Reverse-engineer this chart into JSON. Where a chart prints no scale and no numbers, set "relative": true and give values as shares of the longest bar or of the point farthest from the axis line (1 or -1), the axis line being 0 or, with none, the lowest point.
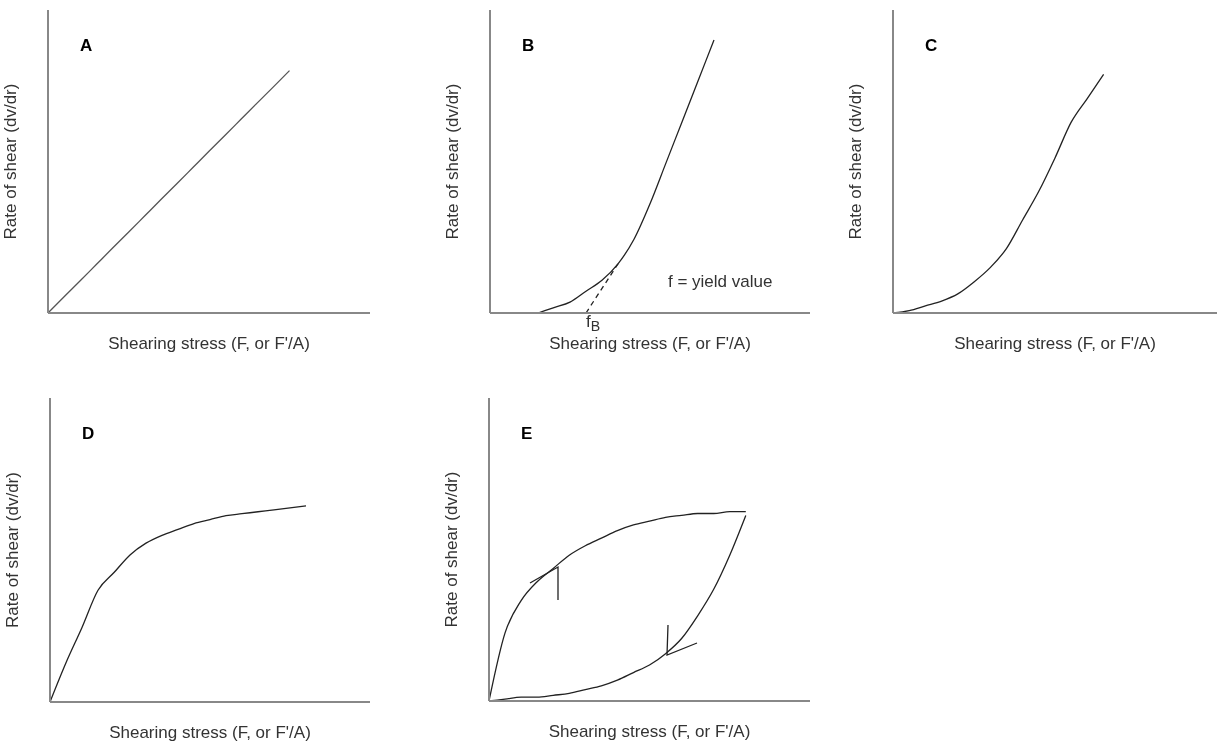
{
  "chart_data": [
    {
      "type": "line",
      "title": "A",
      "xlabel": "Shearing stress (F, or F'/A)",
      "ylabel": "Rate of shear (dv/dr)",
      "relative": true,
      "categories": [
        null,
        null,
        null,
        null,
        null,
        null,
        null,
        null,
        null,
        null,
        null,
        null,
        null,
        null,
        null,
        null,
        null,
        null,
        null,
        null,
        null
      ],
      "series": [
        {
          "color": "#555555",
          "values": [
            0,
            0.067,
            0.133,
            0.2,
            0.267,
            0.333,
            0.4,
            0.467,
            0.533,
            0.6,
            0.667,
            0.733,
            0.8,
            0.867,
            0.933,
            1,
            null,
            null,
            null,
            null,
            null
          ]
        }
      ]
    },
    {
      "type": "line",
      "title": "B",
      "xlabel": "Shearing stress (F, or F'/A)",
      "ylabel": "Rate of shear (dv/dr)",
      "relative": true,
      "annotations": [
        "f = yield value",
        "f$_{B}$"
      ],
      "categories": [
        null,
        null,
        null,
        null,
        null,
        null,
        null,
        null,
        null,
        null,
        null,
        null,
        null,
        null,
        null,
        null,
        null,
        null,
        null,
        null,
        null
      ],
      "series": [
        {
          "color": "#222222",
          "values": [
            null,
            null,
            null,
            0,
            0.02,
            0.04,
            0.08,
            0.12,
            0.18,
            0.27,
            0.4,
            0.55,
            0.7,
            0.85,
            1,
            null,
            null,
            null,
            null,
            null,
            null
          ]
        },
        {
          "color": "#222222",
          "line_style": "dashed",
          "values": [
            null,
            null,
            null,
            null,
            null,
            null,
            0,
            0.09,
            0.18,
            null,
            null,
            null,
            null,
            null,
            null,
            null,
            null,
            null,
            null,
            null,
            null
          ]
        }
      ]
    },
    {
      "type": "line",
      "title": "C",
      "xlabel": "Shearing stress (F, or F'/A)",
      "ylabel": "Rate of shear (dv/dr)",
      "relative": true,
      "categories": [
        null,
        null,
        null,
        null,
        null,
        null,
        null,
        null,
        null,
        null,
        null,
        null,
        null,
        null,
        null,
        null,
        null,
        null,
        null,
        null,
        null
      ],
      "series": [
        {
          "color": "#222222",
          "values": [
            0,
            0.01,
            0.03,
            0.05,
            0.08,
            0.13,
            0.19,
            0.27,
            0.39,
            0.51,
            0.65,
            0.8,
            0.9,
            1,
            null,
            null,
            null,
            null,
            null,
            null,
            null
          ]
        }
      ]
    },
    {
      "type": "line",
      "title": "D",
      "xlabel": "Shearing stress (F, or F'/A)",
      "ylabel": "Rate of shear (dv/dr)",
      "relative": true,
      "categories": [
        null,
        null,
        null,
        null,
        null,
        null,
        null,
        null,
        null,
        null,
        null,
        null,
        null,
        null,
        null,
        null,
        null,
        null,
        null,
        null,
        null
      ],
      "series": [
        {
          "color": "#222222",
          "values": [
            0,
            0.2,
            0.38,
            0.57,
            0.66,
            0.75,
            0.81,
            0.85,
            0.88,
            0.91,
            0.93,
            0.95,
            0.96,
            0.97,
            0.98,
            0.99,
            1,
            null,
            null,
            null,
            null
          ]
        }
      ]
    },
    {
      "type": "line",
      "title": "E",
      "xlabel": "Shearing stress (F, or F'/A)",
      "ylabel": "Rate of shear (dv/dr)",
      "relative": true,
      "categories": [
        null,
        null,
        null,
        null,
        null,
        null,
        null,
        null,
        null,
        null,
        null,
        null,
        null,
        null,
        null,
        null,
        null,
        null,
        null,
        null,
        null
      ],
      "series": [
        {
          "color": "#222222",
          "values": [
            0,
            0.36,
            0.53,
            0.63,
            0.7,
            0.77,
            0.82,
            0.86,
            0.9,
            0.93,
            0.95,
            0.97,
            0.98,
            0.99,
            0.99,
            1,
            1,
            null,
            null,
            null,
            null
          ]
        },
        {
          "color": "#222222",
          "values": [
            0,
            0.01,
            0.02,
            0.02,
            0.03,
            0.04,
            0.06,
            0.08,
            0.11,
            0.15,
            0.19,
            0.25,
            0.33,
            0.45,
            0.59,
            0.77,
            0.98,
            null,
            null,
            null,
            null
          ]
        }
      ]
    }
  ]
}
